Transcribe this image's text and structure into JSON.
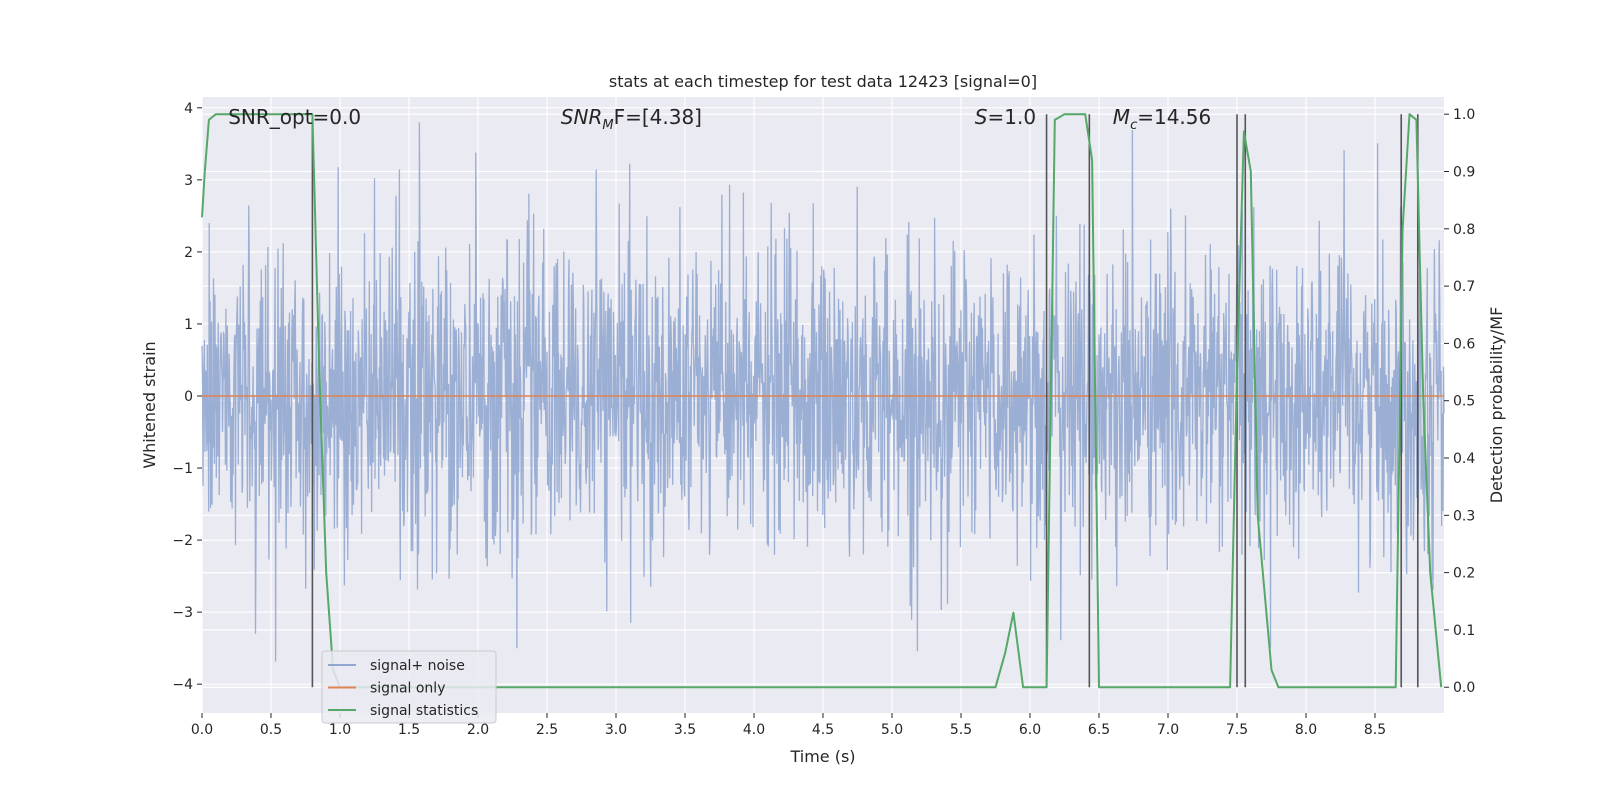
{
  "chart_data": {
    "type": "line",
    "title": "stats at each timestep for test data 12423 [signal=0]",
    "xlabel": "Time (s)",
    "ylabel": "Whitened strain",
    "y2label": "Detection probability/MF",
    "xlim": [
      0.0,
      9.0
    ],
    "ylim": [
      -4.4,
      4.15
    ],
    "y2lim": [
      -0.045,
      1.03
    ],
    "x_ticks": [
      "0.0",
      "0.5",
      "1.0",
      "1.5",
      "2.0",
      "2.5",
      "3.0",
      "3.5",
      "4.0",
      "4.5",
      "5.0",
      "5.5",
      "6.0",
      "6.5",
      "7.0",
      "7.5",
      "8.0",
      "8.5"
    ],
    "y_ticks": [
      "4",
      "3",
      "2",
      "1",
      "0",
      "−1",
      "−2",
      "−3",
      "−4"
    ],
    "y2_ticks": [
      "1.0",
      "0.9",
      "0.8",
      "0.7",
      "0.6",
      "0.5",
      "0.4",
      "0.3",
      "0.2",
      "0.1",
      "0.0"
    ],
    "grid": true,
    "legend_position": "lower-left",
    "annotations": {
      "snr_opt": "SNR_opt=0.0",
      "snr_mf_prefix": "SNR",
      "snr_mf_sub": "M",
      "snr_mf_suffix": "F=[4.38]",
      "s_prefix": "S",
      "s_value": "=1.0",
      "mc_prefix": "M",
      "mc_sub": "c",
      "mc_value": "=14.56"
    },
    "series": [
      {
        "name": "signal+ noise",
        "color": "#92a7cf",
        "description_values": "gaussian noise, envelope approx -2.6 to 3.8 with spikes down to -4"
      },
      {
        "name": "signal only",
        "color": "#dd8452",
        "x": [
          0.0,
          9.0
        ],
        "y": [
          0.0,
          0.0
        ]
      },
      {
        "name": "signal statistics",
        "color": "#55a868",
        "axis": "right",
        "x": [
          0.0,
          0.02,
          0.05,
          0.1,
          0.2,
          0.3,
          0.4,
          0.5,
          0.6,
          0.7,
          0.8,
          0.85,
          0.9,
          0.95,
          1.0,
          1.1,
          1.2,
          1.5,
          2.0,
          3.0,
          4.0,
          5.0,
          5.5,
          5.75,
          5.82,
          5.88,
          5.95,
          6.0,
          6.12,
          6.18,
          6.25,
          6.3,
          6.4,
          6.45,
          6.5,
          6.6,
          7.0,
          7.45,
          7.5,
          7.55,
          7.6,
          7.65,
          7.75,
          7.8,
          8.0,
          8.5,
          8.65,
          8.7,
          8.75,
          8.8,
          8.85,
          8.9,
          8.98
        ],
        "y": [
          0.82,
          0.9,
          0.99,
          1.0,
          1.0,
          1.0,
          1.0,
          1.0,
          1.0,
          1.0,
          1.0,
          0.55,
          0.2,
          0.03,
          0.0,
          0.0,
          0.0,
          0.0,
          0.0,
          0.0,
          0.0,
          0.0,
          0.0,
          0.0,
          0.06,
          0.13,
          0.0,
          0.0,
          0.0,
          0.99,
          1.0,
          1.0,
          1.0,
          0.92,
          0.0,
          0.0,
          0.0,
          0.0,
          0.55,
          0.97,
          0.9,
          0.3,
          0.03,
          0.0,
          0.0,
          0.0,
          0.0,
          0.8,
          1.0,
          0.99,
          0.5,
          0.2,
          0.0
        ]
      }
    ],
    "vertical_markers": {
      "color": "#555555",
      "x": [
        0.8,
        6.12,
        6.43,
        7.5,
        7.56,
        8.69,
        8.81
      ]
    },
    "noise_seed": 12423
  }
}
